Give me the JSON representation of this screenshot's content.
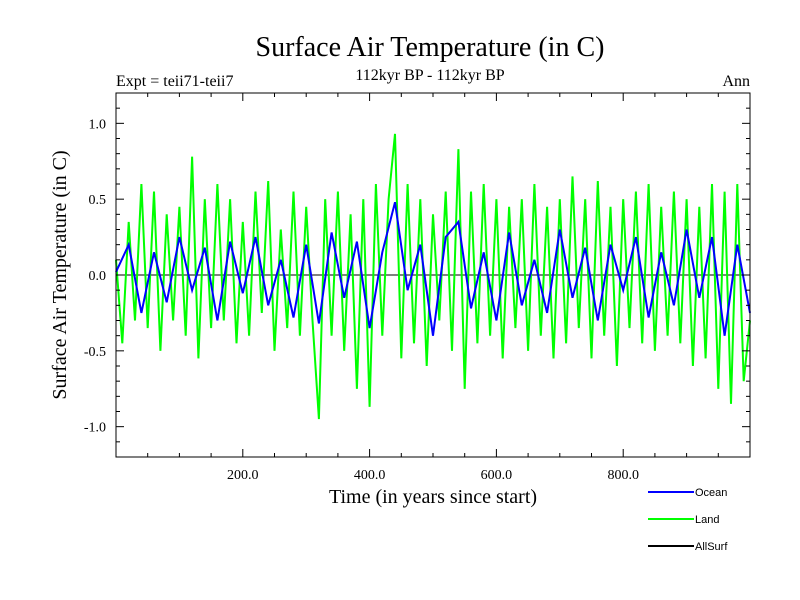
{
  "chart_data": {
    "type": "line",
    "title": "Surface Air Temperature (in C)",
    "subtitle": "112kyr BP - 112kyr BP",
    "experiment_label": "Expt = teii71-teii7",
    "period_label": "Ann",
    "xlabel": "Time (in years since start)",
    "ylabel": "Surface Air Temperature (in C)",
    "xlim": [
      0,
      1000
    ],
    "ylim": [
      -1.2,
      1.2
    ],
    "xticks": [
      200,
      400,
      600,
      800
    ],
    "xtick_labels": [
      "200.0",
      "400.0",
      "600.0",
      "800.0"
    ],
    "yticks": [
      1.0,
      0.5,
      0.0,
      -0.5,
      -1.0
    ],
    "ytick_labels": [
      "1.0",
      "0.5",
      "0.0",
      "-0.5",
      "-1.0"
    ],
    "grid": false,
    "zero_line": true,
    "legend_position": "bottom-right",
    "series": [
      {
        "name": "Ocean",
        "color": "#0000ff",
        "x": [
          0,
          20,
          40,
          60,
          80,
          100,
          120,
          140,
          160,
          180,
          200,
          220,
          240,
          260,
          280,
          300,
          320,
          340,
          360,
          380,
          400,
          420,
          440,
          460,
          480,
          500,
          520,
          540,
          560,
          580,
          600,
          620,
          640,
          660,
          680,
          700,
          720,
          740,
          760,
          780,
          800,
          820,
          840,
          860,
          880,
          900,
          920,
          940,
          960,
          980,
          1000
        ],
        "values": [
          0.02,
          0.2,
          -0.25,
          0.15,
          -0.18,
          0.25,
          -0.1,
          0.18,
          -0.3,
          0.22,
          -0.12,
          0.25,
          -0.2,
          0.1,
          -0.28,
          0.2,
          -0.32,
          0.28,
          -0.15,
          0.22,
          -0.35,
          0.15,
          0.48,
          -0.1,
          0.2,
          -0.4,
          0.25,
          0.35,
          -0.22,
          0.15,
          -0.3,
          0.28,
          -0.2,
          0.1,
          -0.25,
          0.3,
          -0.15,
          0.18,
          -0.3,
          0.2,
          -0.1,
          0.25,
          -0.28,
          0.15,
          -0.2,
          0.3,
          -0.15,
          0.25,
          -0.4,
          0.2,
          -0.25
        ]
      },
      {
        "name": "Land",
        "color": "#00ff00",
        "x": [
          0,
          10,
          20,
          30,
          40,
          50,
          60,
          70,
          80,
          90,
          100,
          110,
          120,
          130,
          140,
          150,
          160,
          170,
          180,
          190,
          200,
          210,
          220,
          230,
          240,
          250,
          260,
          270,
          280,
          290,
          300,
          310,
          320,
          330,
          340,
          350,
          360,
          370,
          380,
          390,
          400,
          410,
          420,
          430,
          440,
          450,
          460,
          470,
          480,
          490,
          500,
          510,
          520,
          530,
          540,
          550,
          560,
          570,
          580,
          590,
          600,
          610,
          620,
          630,
          640,
          650,
          660,
          670,
          680,
          690,
          700,
          710,
          720,
          730,
          740,
          750,
          760,
          770,
          780,
          790,
          800,
          810,
          820,
          830,
          840,
          850,
          860,
          870,
          880,
          890,
          900,
          910,
          920,
          930,
          940,
          950,
          960,
          970,
          980,
          990,
          1000
        ],
        "values": [
          0.1,
          -0.45,
          0.35,
          -0.3,
          0.6,
          -0.35,
          0.55,
          -0.5,
          0.4,
          -0.3,
          0.45,
          -0.4,
          0.78,
          -0.55,
          0.5,
          -0.35,
          0.6,
          -0.3,
          0.5,
          -0.45,
          0.35,
          -0.4,
          0.55,
          -0.25,
          0.62,
          -0.5,
          0.3,
          -0.35,
          0.55,
          -0.4,
          0.45,
          -0.3,
          -0.95,
          0.5,
          -0.4,
          0.55,
          -0.5,
          0.4,
          -0.75,
          0.5,
          -0.87,
          0.6,
          -0.4,
          0.5,
          0.93,
          -0.55,
          0.6,
          -0.45,
          0.5,
          -0.6,
          0.4,
          -0.3,
          0.55,
          -0.5,
          0.83,
          -0.75,
          0.55,
          -0.45,
          0.6,
          -0.4,
          0.5,
          -0.55,
          0.45,
          -0.35,
          0.5,
          -0.5,
          0.6,
          -0.4,
          0.45,
          -0.55,
          0.5,
          -0.45,
          0.65,
          -0.35,
          0.5,
          -0.55,
          0.62,
          -0.4,
          0.45,
          -0.6,
          0.5,
          -0.35,
          0.55,
          -0.45,
          0.6,
          -0.5,
          0.45,
          -0.4,
          0.55,
          -0.45,
          0.5,
          -0.6,
          0.45,
          -0.55,
          0.6,
          -0.75,
          0.55,
          -0.85,
          0.6,
          -0.7,
          -0.3
        ]
      },
      {
        "name": "AllSurf",
        "color": "#000000",
        "x": [],
        "values": []
      }
    ]
  }
}
